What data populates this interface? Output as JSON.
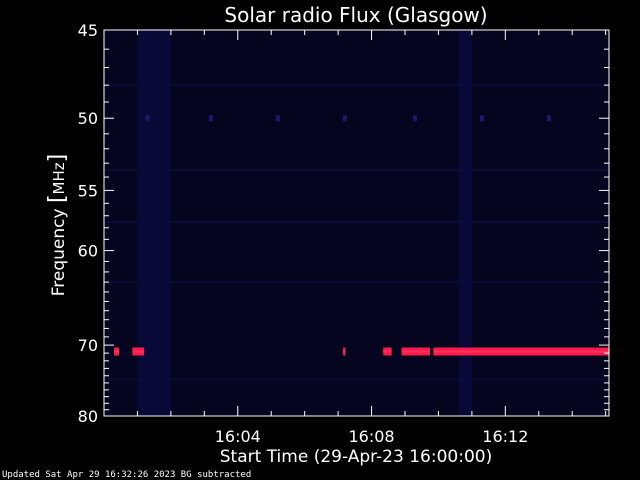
{
  "chart_data": {
    "type": "heatmap",
    "title": "Solar radio Flux (Glasgow)",
    "xlabel": "Start Time (29-Apr-23 16:00:00)",
    "ylabel_prefix": "Frequency ",
    "ylabel_bracket_open": "[",
    "ylabel_unit": "MHz",
    "ylabel_bracket_close": "]",
    "xlim_minutes": [
      0,
      15.1
    ],
    "ylim_mhz": [
      45,
      80
    ],
    "x_ticks": [
      {
        "minutes": 4,
        "label": "16:04"
      },
      {
        "minutes": 8,
        "label": "16:08"
      },
      {
        "minutes": 12,
        "label": "16:12"
      }
    ],
    "y_ticks": [
      {
        "mhz": 45,
        "label": "45"
      },
      {
        "mhz": 50,
        "label": "50"
      },
      {
        "mhz": 55,
        "label": "55"
      },
      {
        "mhz": 60,
        "label": "60"
      },
      {
        "mhz": 70,
        "label": "70"
      },
      {
        "mhz": 80,
        "label": "80"
      }
    ],
    "y_scale": "reciprocal",
    "colors": {
      "background": "#000000",
      "spectrum": "#05051f",
      "band": "#ff1a4a",
      "band_core": "#ff3060",
      "faint": "#1a1a70"
    },
    "emission_band": {
      "frequency_mhz": 70.8,
      "segments_minutes": [
        [
          0.3,
          0.45
        ],
        [
          0.85,
          1.2
        ],
        [
          7.15,
          7.22
        ],
        [
          8.35,
          8.6
        ],
        [
          8.9,
          9.75
        ],
        [
          9.85,
          15.1
        ]
      ]
    },
    "faint_bands": [
      {
        "start_minutes": 1.0,
        "end_minutes": 2.0
      },
      {
        "start_minutes": 10.6,
        "end_minutes": 11.0
      }
    ],
    "faint_spots_50mhz_minutes": [
      1.3,
      3.2,
      5.2,
      7.2,
      9.3,
      11.3,
      13.3
    ],
    "footer": "Updated Sat Apr 29 16:32:26 2023    BG subtracted"
  }
}
